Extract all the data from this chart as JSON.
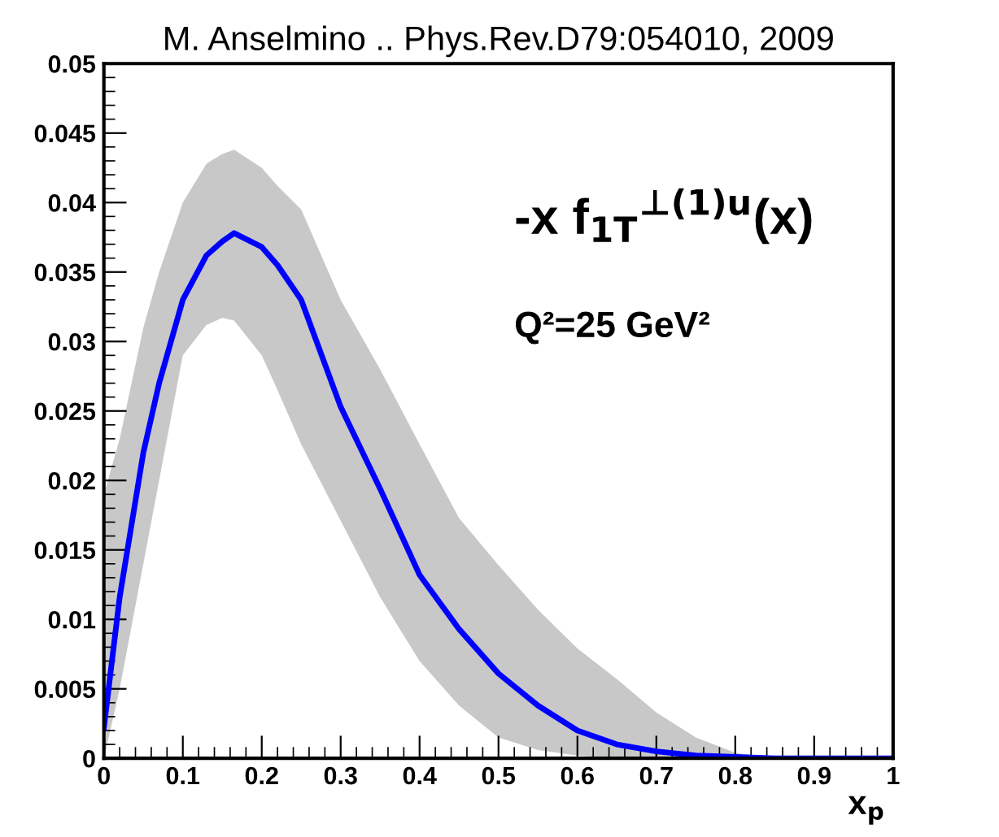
{
  "chart_data": {
    "type": "line",
    "title": "M. Anselmino .. Phys.Rev.D79:054010, 2009",
    "xlabel": "x$_{p}$",
    "annotations": [
      "-x f$_{1T}$$^{⊥(1)u}$(x)",
      "Q²=25 GeV²"
    ],
    "x": [
      0,
      0.02,
      0.05,
      0.07,
      0.1,
      0.13,
      0.15,
      0.165,
      0.2,
      0.22,
      0.25,
      0.3,
      0.35,
      0.4,
      0.45,
      0.5,
      0.55,
      0.6,
      0.65,
      0.7,
      0.75,
      0.8,
      0.85,
      0.9,
      0.95,
      1.0
    ],
    "series": [
      {
        "color": "#0000ff",
        "values": [
          0.0022,
          0.0116,
          0.022,
          0.027,
          0.033,
          0.0362,
          0.0372,
          0.0378,
          0.0368,
          0.0355,
          0.033,
          0.0253,
          0.0194,
          0.0132,
          0.0093,
          0.0061,
          0.0038,
          0.002,
          0.001,
          0.0005,
          0.0002,
          0.0001,
          0,
          0,
          0,
          0
        ],
        "upper": [
          0.019,
          0.023,
          0.031,
          0.035,
          0.04,
          0.0428,
          0.0435,
          0.0438,
          0.0425,
          0.0412,
          0.0395,
          0.033,
          0.028,
          0.0226,
          0.0173,
          0.0139,
          0.0107,
          0.0079,
          0.0057,
          0.0033,
          0.0015,
          0.0004,
          0,
          0,
          0,
          0
        ],
        "lower": [
          0,
          0.005,
          0.014,
          0.02,
          0.029,
          0.0312,
          0.0317,
          0.0315,
          0.029,
          0.0265,
          0.0226,
          0.0171,
          0.0116,
          0.007,
          0.0038,
          0.0015,
          0.0006,
          0.0002,
          0,
          0,
          0,
          0,
          0,
          0,
          0,
          0
        ]
      }
    ],
    "xlim": [
      0,
      1
    ],
    "ylim": [
      0,
      0.05
    ],
    "xticks": [
      0,
      0.1,
      0.2,
      0.3,
      0.4,
      0.5,
      0.6,
      0.7,
      0.8,
      0.9,
      1
    ],
    "yticks": [
      0,
      0.005,
      0.01,
      0.015,
      0.02,
      0.025,
      0.03,
      0.035,
      0.04,
      0.045,
      0.05
    ],
    "grid": false,
    "legend": false,
    "marker": "none",
    "line_style": "solid"
  }
}
